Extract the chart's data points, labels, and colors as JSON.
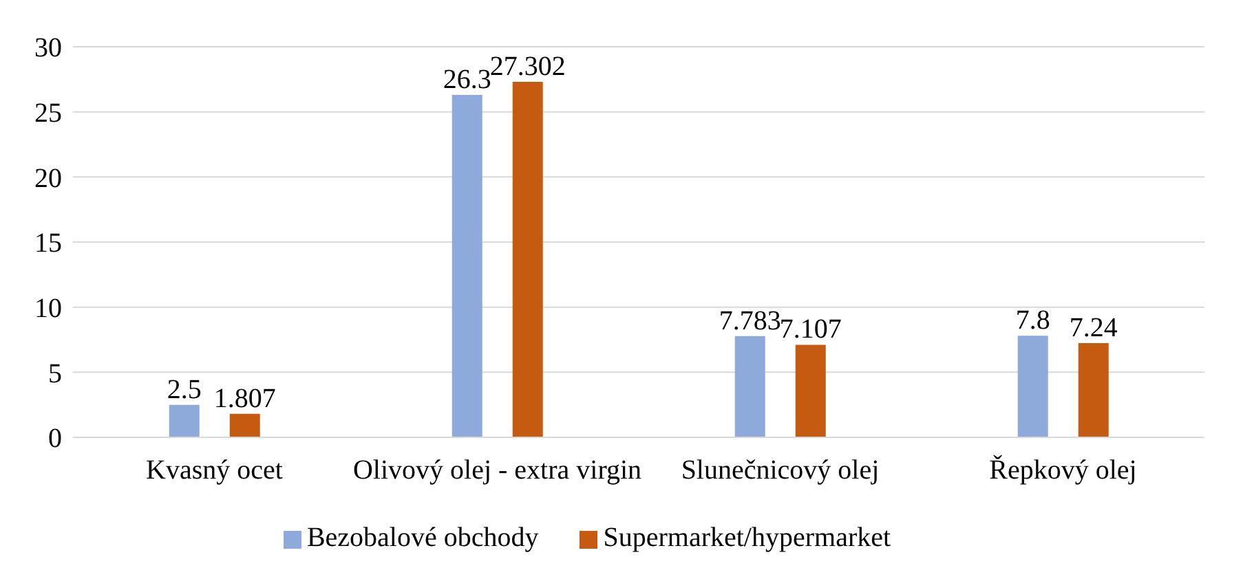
{
  "chart_data": {
    "type": "bar",
    "categories": [
      "Kvasný ocet",
      "Olivový olej - extra virgin",
      "Slunečnicový olej",
      "Řepkový olej"
    ],
    "series": [
      {
        "name": "Bezobalové obchody",
        "color": "#8eaadb",
        "values": [
          2.5,
          26.3,
          7.783,
          7.8
        ]
      },
      {
        "name": "Supermarket/hypermarket",
        "color": "#c55a11",
        "values": [
          1.807,
          27.302,
          7.107,
          7.24
        ]
      }
    ],
    "ylim": [
      0,
      30
    ],
    "yticks": [
      0,
      5,
      10,
      15,
      20,
      25,
      30
    ],
    "grid": "y",
    "legend": "bottom",
    "data_labels": true
  }
}
